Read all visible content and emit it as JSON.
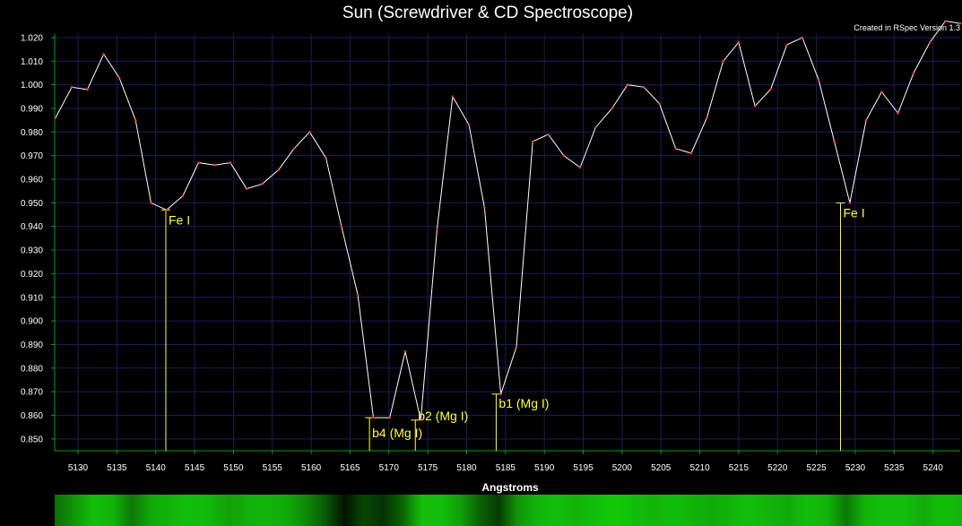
{
  "header": {
    "title": "Sun (Screwdriver & CD Spectroscope)",
    "credit": "Created in RSpec Version 1.3"
  },
  "colors": {
    "background": "#000000",
    "grid": "#1c1c5c",
    "axis": "#00aa00",
    "line": "#ffffff",
    "marker": "#ff3333",
    "annotation": "#ffff33",
    "tick_text": "#ffffff"
  },
  "chart_data": {
    "type": "line",
    "title": "Sun (Screwdriver & CD Spectroscope)",
    "xlabel": "Angstroms",
    "ylabel": "",
    "xlim": [
      5127,
      5243.5
    ],
    "ylim": [
      0.845,
      1.0215
    ],
    "grid": true,
    "x_ticks": [
      5130,
      5135,
      5140,
      5145,
      5150,
      5155,
      5160,
      5165,
      5170,
      5175,
      5180,
      5185,
      5190,
      5195,
      5200,
      5205,
      5210,
      5215,
      5220,
      5225,
      5230,
      5235,
      5240
    ],
    "y_ticks": [
      "0.850",
      "0.860",
      "0.870",
      "0.880",
      "0.890",
      "0.900",
      "0.910",
      "0.920",
      "0.930",
      "0.940",
      "0.950",
      "0.960",
      "0.970",
      "0.980",
      "0.990",
      "1.000",
      "1.010",
      "1.020"
    ],
    "series": [
      {
        "x": [
          5127.1,
          5129.2,
          5131.2,
          5133.3,
          5135.3,
          5137.4,
          5139.4,
          5141.4,
          5143.5,
          5145.5,
          5147.6,
          5149.6,
          5151.7,
          5153.7,
          5155.8,
          5157.8,
          5159.8,
          5161.9,
          5163.9,
          5166.0,
          5168.0,
          5170.1,
          5172.1,
          5174.1,
          5176.2,
          5178.2,
          5180.3,
          5182.3,
          5184.4,
          5186.4,
          5188.5,
          5190.5,
          5192.5,
          5194.6,
          5196.6,
          5198.7,
          5200.7,
          5202.8,
          5204.8,
          5206.9,
          5208.9,
          5210.9,
          5213.0,
          5215.0,
          5217.1,
          5219.1,
          5221.2,
          5223.2,
          5225.3,
          5227.3,
          5229.3,
          5231.4,
          5233.4,
          5235.5,
          5237.5,
          5239.6,
          5241.6,
          5243.5
        ],
        "values": [
          0.986,
          0.999,
          0.998,
          1.013,
          1.003,
          0.985,
          0.95,
          0.947,
          0.953,
          0.967,
          0.966,
          0.967,
          0.956,
          0.958,
          0.964,
          0.973,
          0.98,
          0.969,
          0.94,
          0.911,
          0.859,
          0.859,
          0.887,
          0.858,
          0.939,
          0.995,
          0.983,
          0.948,
          0.869,
          0.889,
          0.976,
          0.979,
          0.97,
          0.965,
          0.982,
          0.99,
          1.0,
          0.999,
          0.992,
          0.973,
          0.971,
          0.986,
          1.01,
          1.018,
          0.991,
          0.998,
          1.017,
          1.02,
          1.002,
          0.976,
          0.95,
          0.985,
          0.997,
          0.988,
          1.005,
          1.018,
          1.027,
          1.026
        ]
      }
    ],
    "annotations": [
      {
        "label": "Fe I",
        "x": 5141.3,
        "y": 0.947
      },
      {
        "label": "b4 (Mg I)",
        "x": 5167.5,
        "y": 0.859
      },
      {
        "label": "b2 (Mg I)",
        "x": 5173.4,
        "y": 0.858
      },
      {
        "label": "b1 (Mg I)",
        "x": 5183.8,
        "y": 0.869
      },
      {
        "label": "Fe I",
        "x": 5228.1,
        "y": 0.95
      }
    ]
  },
  "spectrum": {
    "brightness": [
      0.55,
      0.75,
      0.95,
      0.9,
      0.6,
      0.85,
      0.9,
      0.95,
      0.92,
      0.8,
      0.88,
      0.9,
      0.85,
      0.7,
      0.45,
      0.1,
      0.35,
      0.25,
      0.5,
      0.95,
      0.95,
      0.8,
      0.5,
      0.3,
      0.75,
      0.9,
      0.95,
      0.9,
      0.95,
      1.0,
      0.95,
      0.9,
      0.95,
      0.9,
      0.85,
      0.9,
      0.95,
      0.9,
      0.85,
      0.95,
      0.9,
      0.6,
      0.9,
      0.95,
      0.95,
      0.85,
      0.95,
      0.9
    ]
  }
}
